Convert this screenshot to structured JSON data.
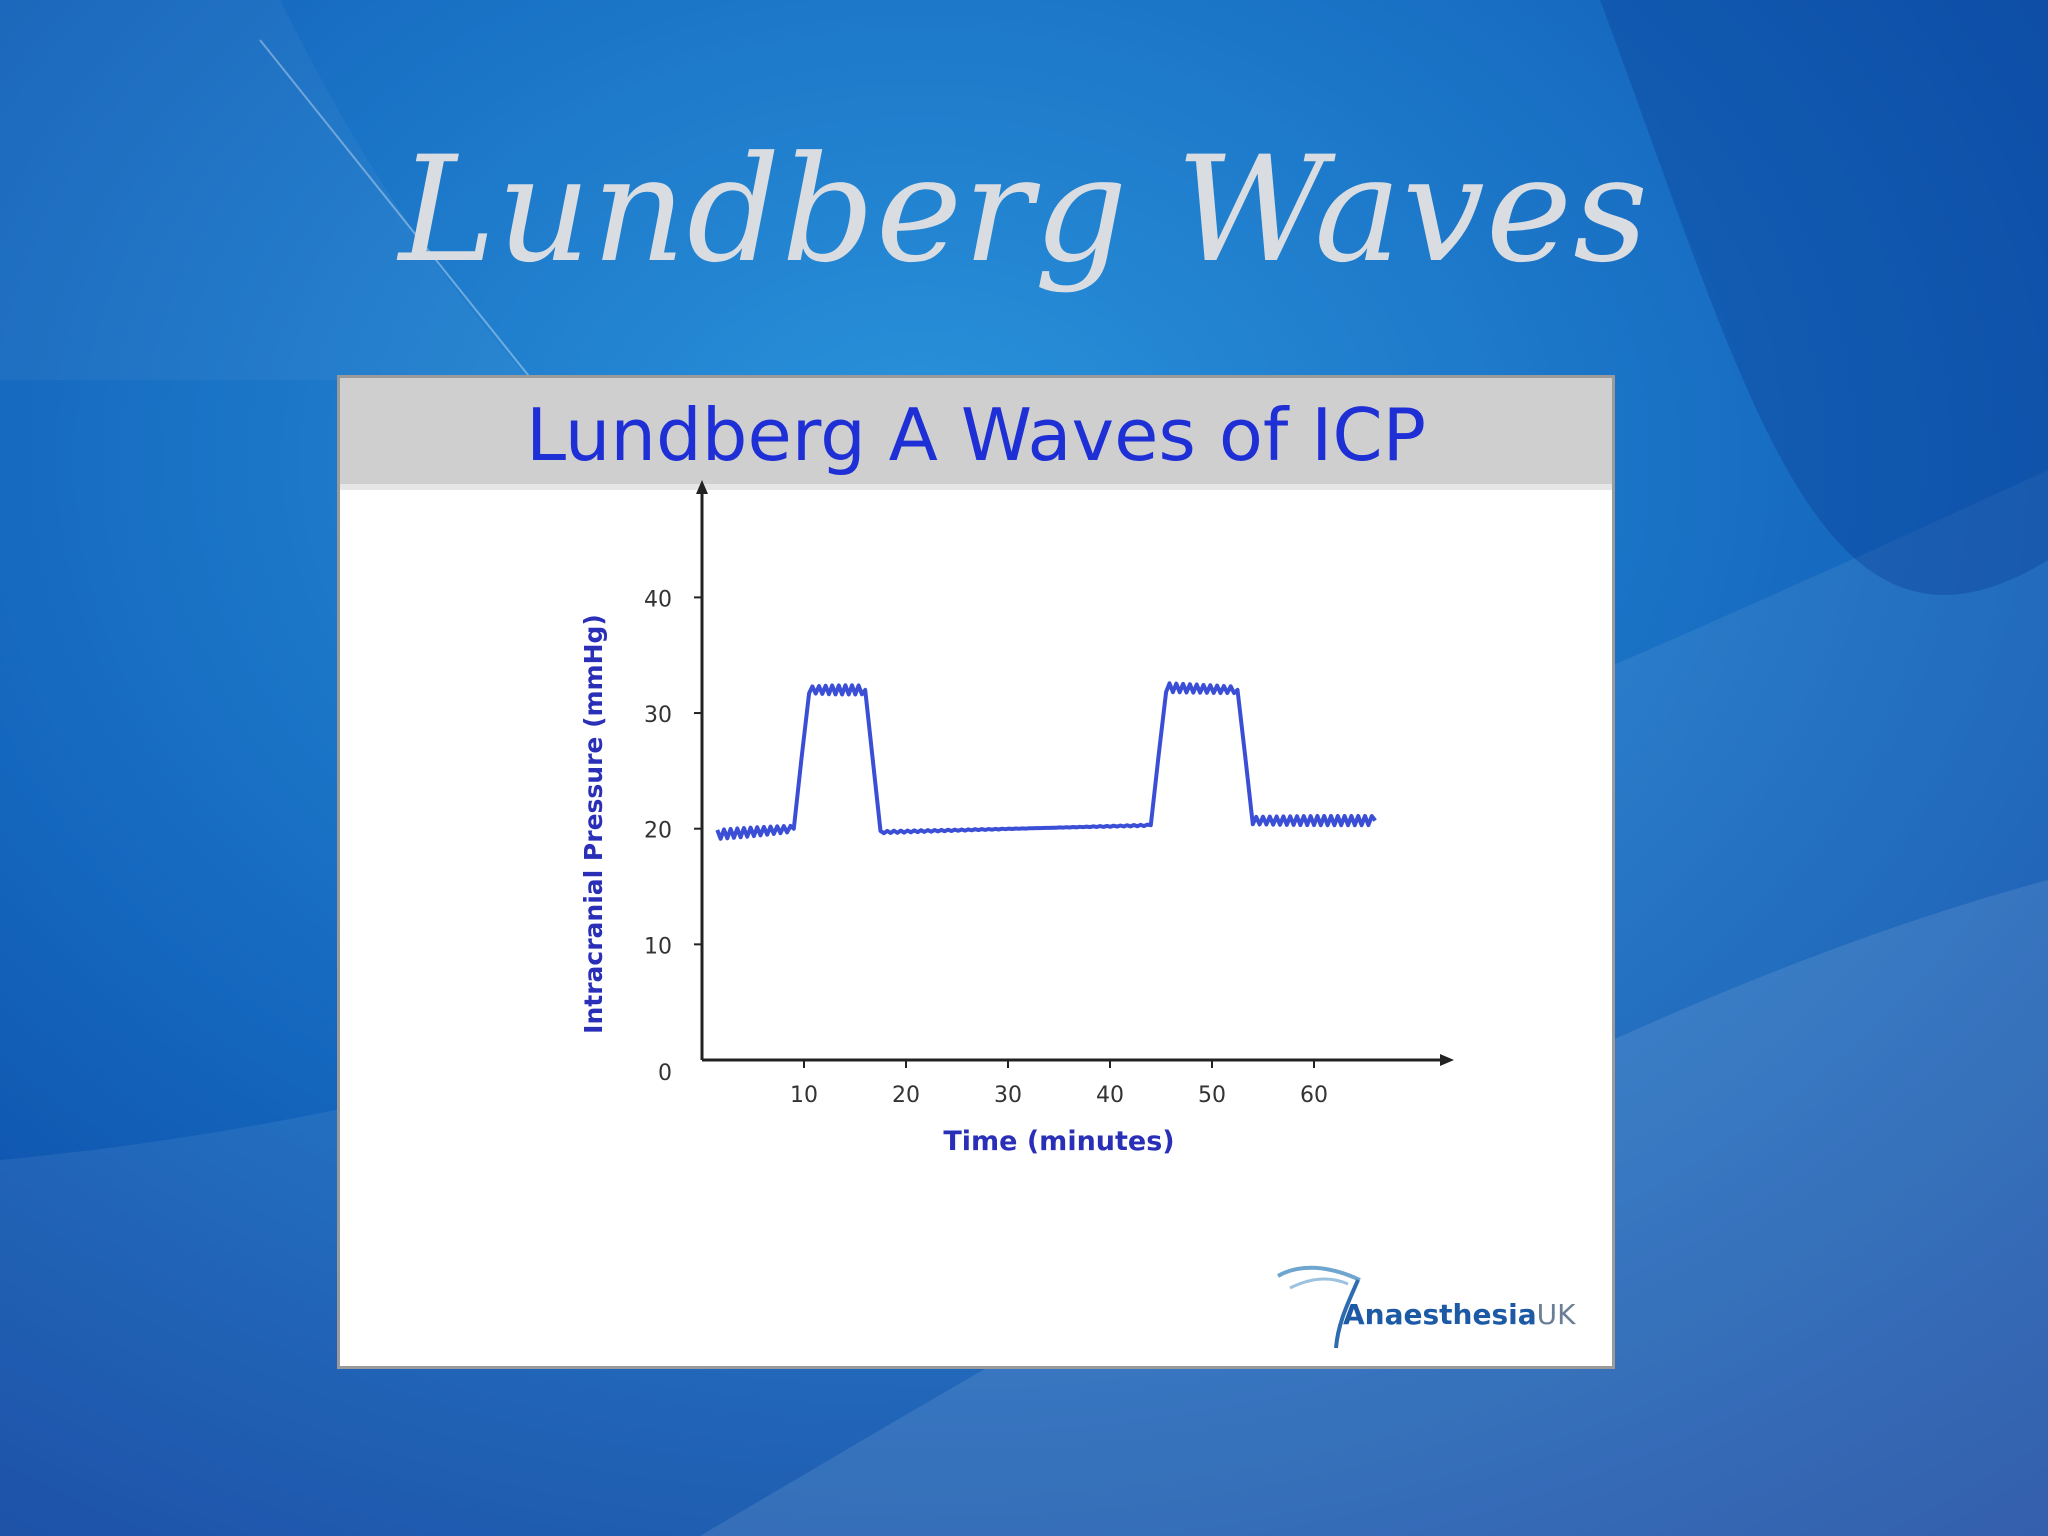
{
  "slide": {
    "title": "Lundberg Waves"
  },
  "figure": {
    "heading": "Lundberg A Waves of ICP",
    "logo_main": "Anaesthesia",
    "logo_suffix": "UK"
  },
  "colors": {
    "title": "#d9dde2",
    "heading": "#1f2fd6",
    "series": "#3a4fd6",
    "axis_label": "#2a2fb8"
  },
  "chart_data": {
    "type": "line",
    "title": "",
    "xlabel": "Time (minutes)",
    "ylabel": "Intracranial Pressure (mmHg)",
    "xlim": [
      0,
      70
    ],
    "ylim": [
      0,
      46
    ],
    "xticks": [
      10,
      20,
      30,
      40,
      50,
      60
    ],
    "yticks": [
      0,
      10,
      20,
      30,
      40
    ],
    "grid": false,
    "legend": "none",
    "series": [
      {
        "x": [
          1.5,
          9,
          10.5,
          16,
          17.5,
          44,
          45.5,
          52.5,
          54,
          66
        ],
        "y": [
          19.5,
          20,
          32,
          32,
          19.7,
          20.3,
          32.2,
          32,
          20.7,
          20.7
        ],
        "ripple": 0.4
      }
    ]
  }
}
